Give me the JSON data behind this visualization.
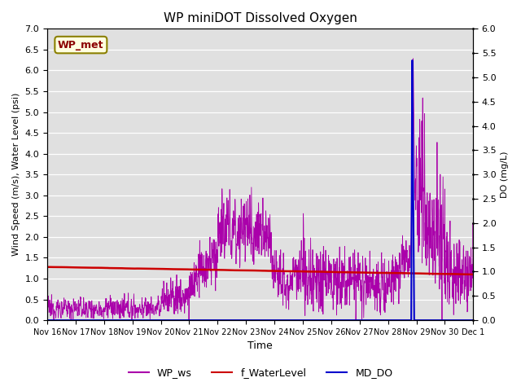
{
  "title": "WP miniDOT Dissolved Oxygen",
  "xlabel": "Time",
  "ylabel_left": "Wind Speed (m/s), Water Level (psi)",
  "ylabel_right": "DO (mg/L)",
  "annotation": "WP_met",
  "ylim_left": [
    0,
    7.0
  ],
  "ylim_right": [
    0,
    6.0
  ],
  "yticks_left": [
    0.0,
    0.5,
    1.0,
    1.5,
    2.0,
    2.5,
    3.0,
    3.5,
    4.0,
    4.5,
    5.0,
    5.5,
    6.0,
    6.5,
    7.0
  ],
  "yticks_right": [
    0.0,
    0.5,
    1.0,
    1.5,
    2.0,
    2.5,
    3.0,
    3.5,
    4.0,
    4.5,
    5.0,
    5.5,
    6.0
  ],
  "color_ws": "#AA00AA",
  "color_wl": "#CC0000",
  "color_do": "#0000CC",
  "background_color": "#E0E0E0",
  "legend_labels": [
    "WP_ws",
    "f_WaterLevel",
    "MD_DO"
  ],
  "xtick_labels": [
    "Nov 16",
    "Nov 17",
    "Nov 18",
    "Nov 19",
    "Nov 20",
    "Nov 21",
    "Nov 22",
    "Nov 23",
    "Nov 24",
    "Nov 25",
    "Nov 26",
    "Nov 27",
    "Nov 28",
    "Nov 29",
    "Nov 30",
    "Dec 1"
  ],
  "seed": 12345
}
